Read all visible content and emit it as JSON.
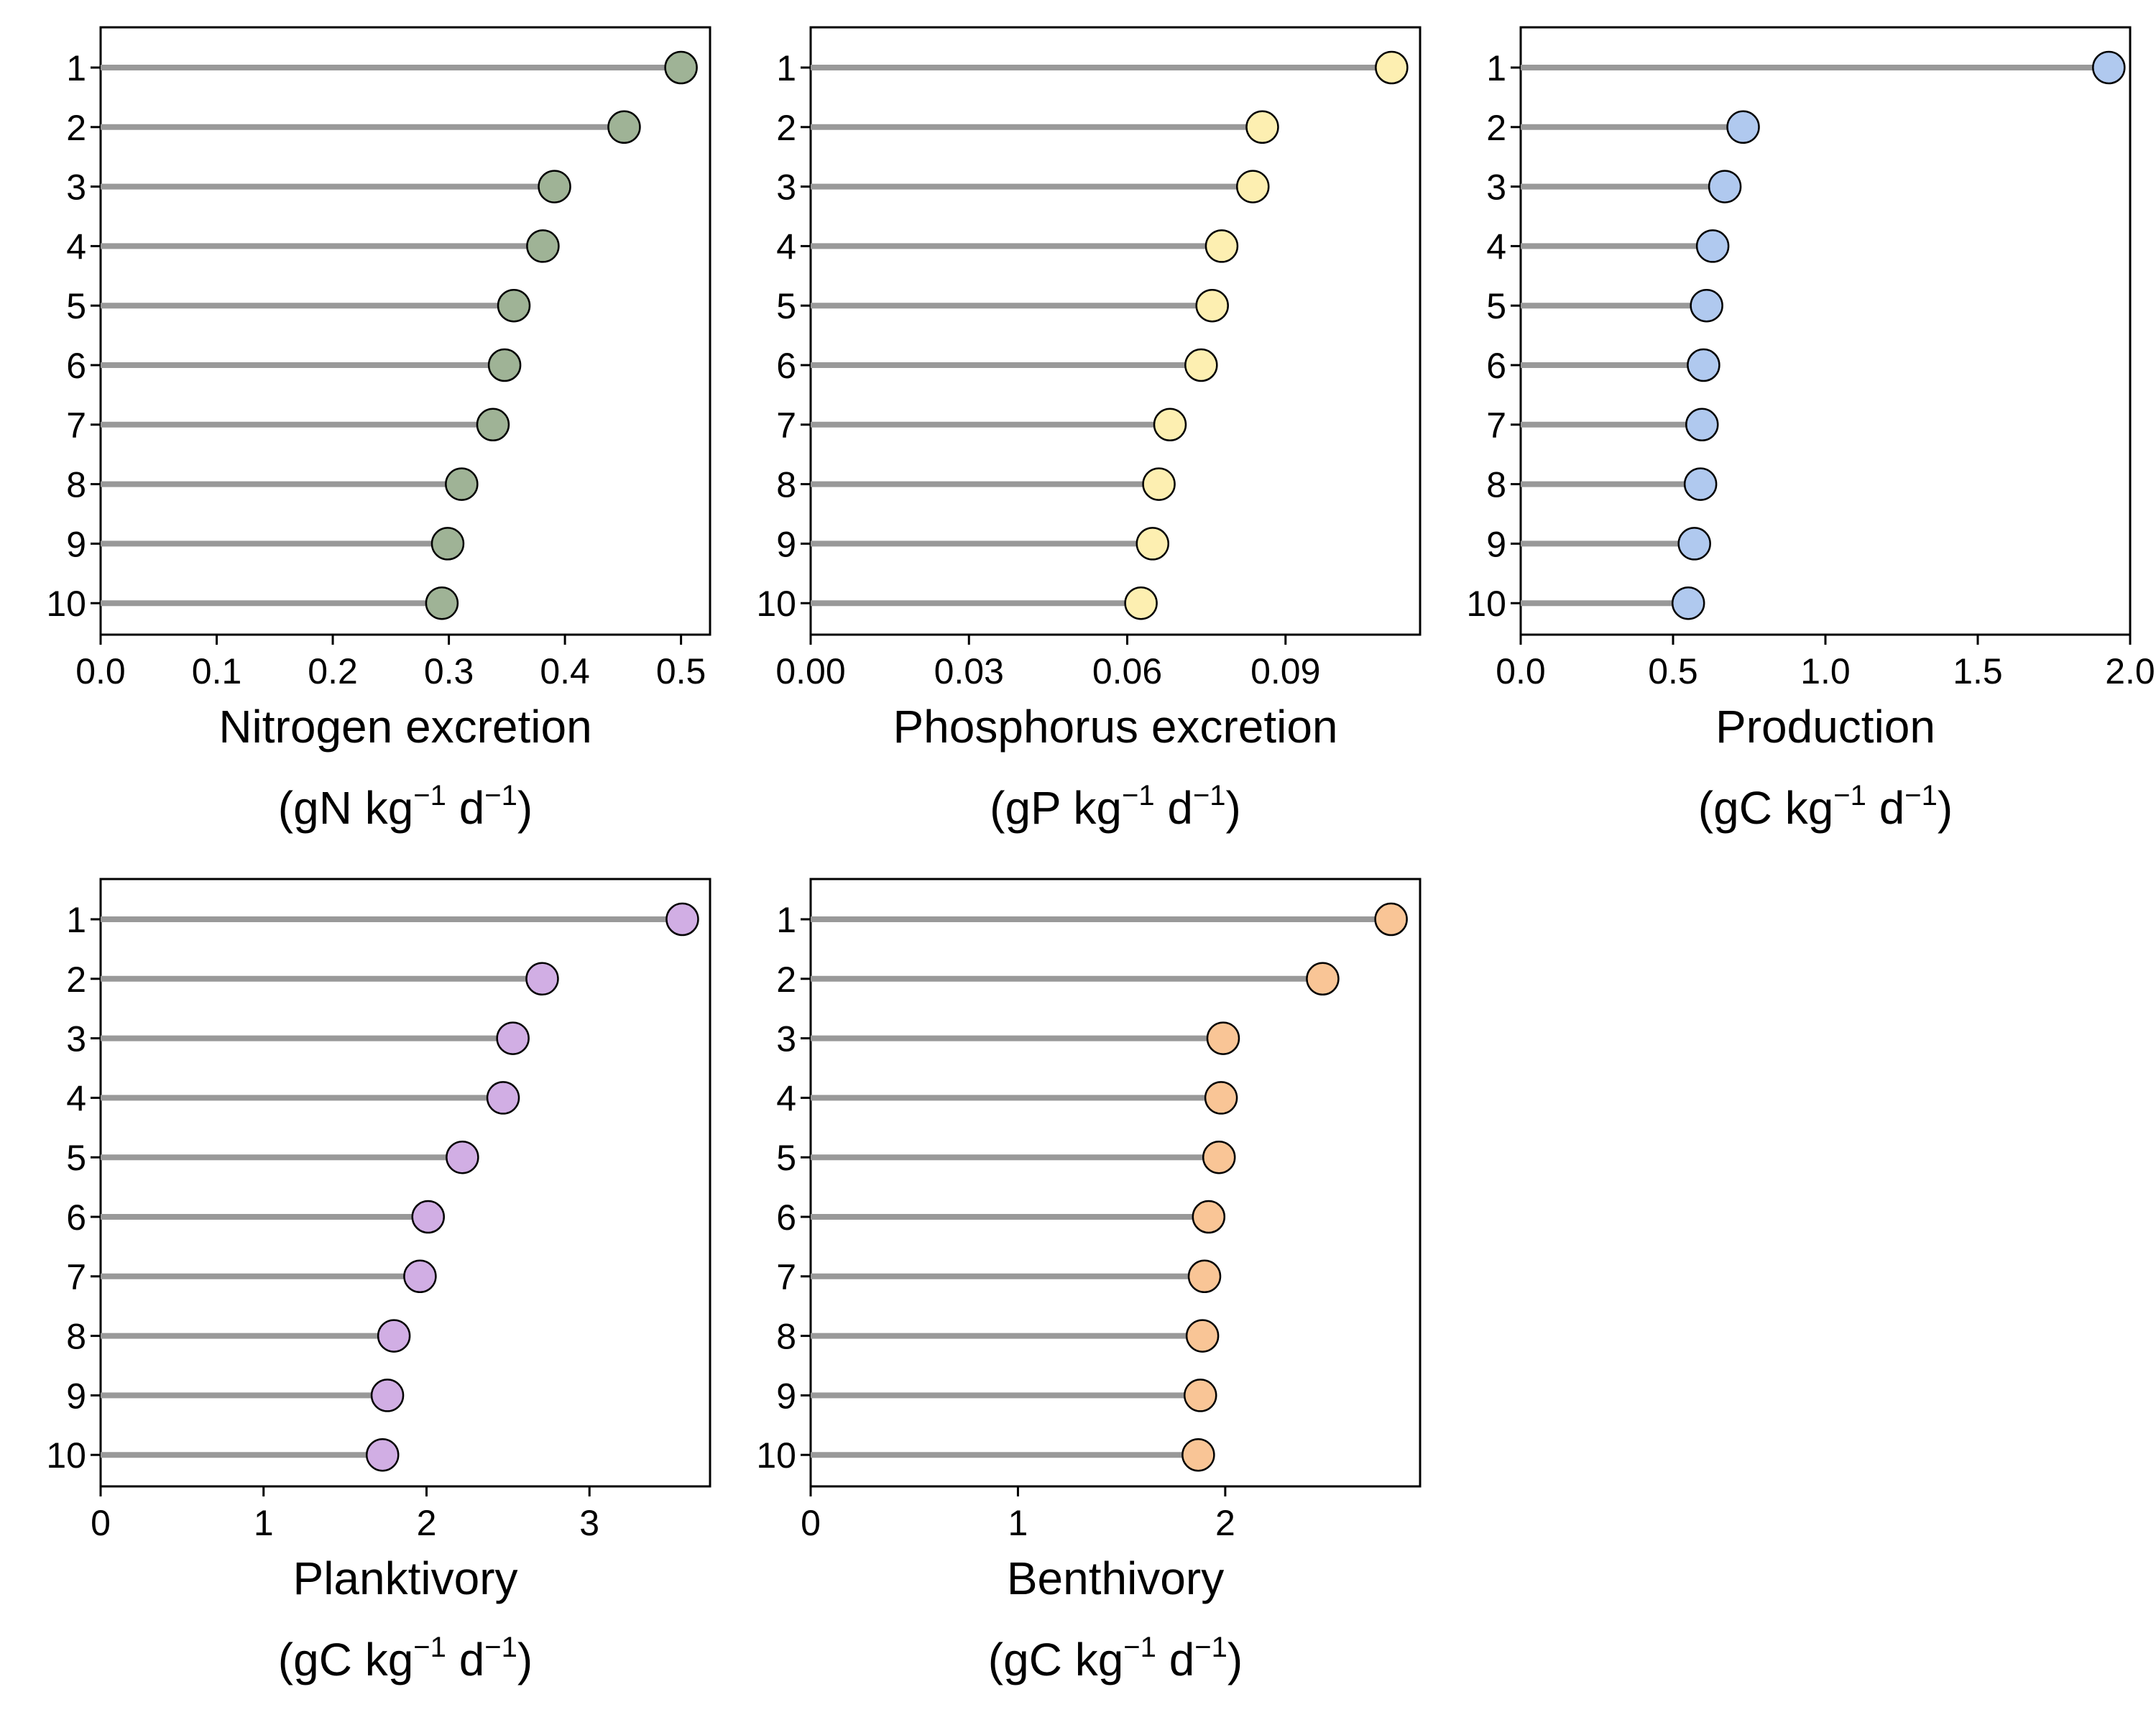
{
  "chart_data": [
    {
      "type": "lollipop",
      "orientation": "horizontal",
      "xlabel": "Nitrogen excretion",
      "xunit": {
        "base": "(gN kg",
        "exp1": "−1",
        "mid": " d",
        "exp2": "−1",
        "end": ")"
      },
      "categories": [
        "1",
        "2",
        "3",
        "4",
        "5",
        "6",
        "7",
        "8",
        "9",
        "10"
      ],
      "values": [
        0.5,
        0.451,
        0.391,
        0.381,
        0.356,
        0.348,
        0.338,
        0.311,
        0.299,
        0.294
      ],
      "xlim": [
        0,
        0.525
      ],
      "xticks": [
        0.0,
        0.1,
        0.2,
        0.3,
        0.4,
        0.5
      ],
      "xtick_labels": [
        "0.0",
        "0.1",
        "0.2",
        "0.3",
        "0.4",
        "0.5"
      ],
      "marker_color": "#9fb396",
      "stem_color": "#999999",
      "grid": false
    },
    {
      "type": "lollipop",
      "orientation": "horizontal",
      "xlabel": "Phosphorus excretion",
      "xunit": {
        "base": "(gP kg",
        "exp1": "−1",
        "mid": " d",
        "exp2": "−1",
        "end": ")"
      },
      "categories": [
        "1",
        "2",
        "3",
        "4",
        "5",
        "6",
        "7",
        "8",
        "9",
        "10"
      ],
      "values": [
        0.1101,
        0.0856,
        0.0838,
        0.0779,
        0.0761,
        0.074,
        0.0681,
        0.066,
        0.0648,
        0.0626
      ],
      "xlim": [
        0,
        0.1155
      ],
      "xticks": [
        0.0,
        0.03,
        0.06,
        0.09
      ],
      "xtick_labels": [
        "0.00",
        "0.03",
        "0.06",
        "0.09"
      ],
      "marker_color": "#fdefb1",
      "stem_color": "#999999",
      "grid": false
    },
    {
      "type": "lollipop",
      "orientation": "horizontal",
      "xlabel": "Production",
      "xunit": {
        "base": "(gC kg",
        "exp1": "−1",
        "mid": " d",
        "exp2": "−1",
        "end": ")"
      },
      "categories": [
        "1",
        "2",
        "3",
        "4",
        "5",
        "6",
        "7",
        "8",
        "9",
        "10"
      ],
      "values": [
        1.93,
        0.73,
        0.67,
        0.63,
        0.61,
        0.6,
        0.595,
        0.59,
        0.57,
        0.55
      ],
      "xlim": [
        0,
        2.0
      ],
      "xticks": [
        0.0,
        0.5,
        1.0,
        1.5,
        2.0
      ],
      "xtick_labels": [
        "0.0",
        "0.5",
        "1.0",
        "1.5",
        "2.0"
      ],
      "marker_color": "#b0c9ef",
      "stem_color": "#999999",
      "grid": false
    },
    {
      "type": "lollipop",
      "orientation": "horizontal",
      "xlabel": "Planktivory",
      "xunit": {
        "base": "(gC kg",
        "exp1": "−1",
        "mid": " d",
        "exp2": "−1",
        "end": ")"
      },
      "categories": [
        "1",
        "2",
        "3",
        "4",
        "5",
        "6",
        "7",
        "8",
        "9",
        "10"
      ],
      "values": [
        3.57,
        2.71,
        2.53,
        2.47,
        2.22,
        2.01,
        1.96,
        1.8,
        1.76,
        1.73
      ],
      "xlim": [
        0,
        3.74
      ],
      "xticks": [
        0,
        1,
        2,
        3
      ],
      "xtick_labels": [
        "0",
        "1",
        "2",
        "3"
      ],
      "marker_color": "#d1aee4",
      "stem_color": "#999999",
      "grid": false
    },
    {
      "type": "lollipop",
      "orientation": "horizontal",
      "xlabel": "Benthivory",
      "xunit": {
        "base": "(gC kg",
        "exp1": "−1",
        "mid": " d",
        "exp2": "−1",
        "end": ")"
      },
      "categories": [
        "1",
        "2",
        "3",
        "4",
        "5",
        "6",
        "7",
        "8",
        "9",
        "10"
      ],
      "values": [
        2.8,
        2.47,
        1.99,
        1.98,
        1.97,
        1.92,
        1.9,
        1.89,
        1.88,
        1.87
      ],
      "xlim": [
        0,
        2.94
      ],
      "xticks": [
        0,
        1,
        2
      ],
      "xtick_labels": [
        "0",
        "1",
        "2"
      ],
      "marker_color": "#f9c596",
      "stem_color": "#999999",
      "grid": false
    }
  ]
}
